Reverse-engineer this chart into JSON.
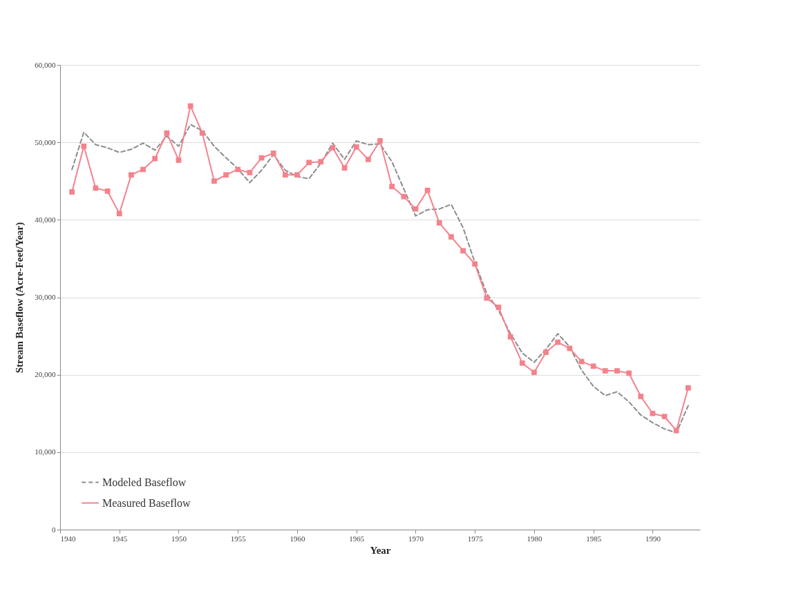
{
  "chart_data": {
    "type": "line",
    "xlabel": "Year",
    "ylabel": "Stream Baseflow (Acre-Feet/Year)",
    "x": [
      1941,
      1942,
      1943,
      1944,
      1945,
      1946,
      1947,
      1948,
      1949,
      1950,
      1951,
      1952,
      1953,
      1954,
      1955,
      1956,
      1957,
      1958,
      1959,
      1960,
      1961,
      1962,
      1963,
      1964,
      1965,
      1966,
      1967,
      1968,
      1969,
      1970,
      1971,
      1972,
      1973,
      1974,
      1975,
      1976,
      1977,
      1978,
      1979,
      1980,
      1981,
      1982,
      1983,
      1984,
      1985,
      1986,
      1987,
      1988,
      1989,
      1990,
      1991,
      1992,
      1993
    ],
    "series": [
      {
        "name": "Modeled Baseflow",
        "color": "#8c8c8c",
        "line_style": "dashed",
        "marker": "none",
        "values": [
          46500,
          51300,
          49700,
          49300,
          48700,
          49100,
          49900,
          49000,
          50800,
          49500,
          52300,
          51500,
          49500,
          48000,
          46600,
          44800,
          46400,
          48400,
          46400,
          45600,
          45300,
          47300,
          49900,
          47800,
          50200,
          49700,
          49800,
          47500,
          44000,
          40500,
          41300,
          41400,
          42000,
          39000,
          34500,
          30500,
          28300,
          25300,
          22800,
          21600,
          23300,
          25300,
          23600,
          20600,
          18500,
          17300,
          17800,
          16500,
          14800,
          13800,
          13000,
          12500,
          16000
        ]
      },
      {
        "name": "Measured Baseflow",
        "color": "#f4828c",
        "line_style": "solid",
        "marker": "square",
        "values": [
          43600,
          49500,
          44100,
          43700,
          40800,
          45800,
          46500,
          47900,
          51200,
          47700,
          54700,
          51200,
          45000,
          45800,
          46500,
          46100,
          48000,
          48600,
          45800,
          45800,
          47400,
          47500,
          49300,
          46700,
          49400,
          47800,
          50200,
          44300,
          43000,
          41400,
          43800,
          39600,
          37800,
          36000,
          34300,
          29900,
          28700,
          24900,
          21500,
          20300,
          22900,
          24200,
          23400,
          21700,
          21100,
          20500,
          20500,
          20200,
          17200,
          15000,
          14600,
          12800,
          18300
        ]
      }
    ],
    "xlim": [
      1940,
      1994
    ],
    "xticks": [
      1940,
      1945,
      1950,
      1955,
      1960,
      1965,
      1970,
      1975,
      1980,
      1985,
      1990
    ],
    "ylim": [
      0,
      60000
    ],
    "yticks": [
      {
        "value": 0,
        "label": "0"
      },
      {
        "value": 10000,
        "label": "10,000"
      },
      {
        "value": 20000,
        "label": "20,000"
      },
      {
        "value": 30000,
        "label": "30,000"
      },
      {
        "value": 40000,
        "label": "40,000"
      },
      {
        "value": 50000,
        "label": "50,000"
      },
      {
        "value": 60000,
        "label": "60,000"
      }
    ],
    "grid": "y",
    "legend": "bottom left"
  }
}
